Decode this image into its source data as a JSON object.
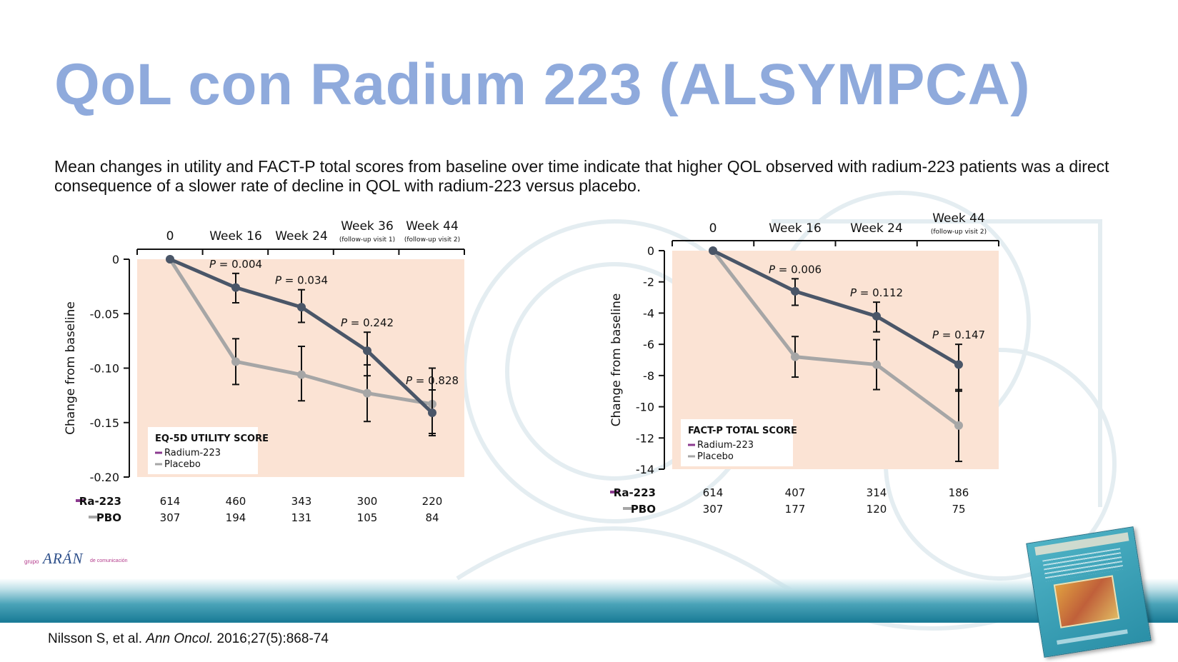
{
  "slide": {
    "title": "QoL con Radium 223 (ALSYMPCA)",
    "subtitle": "Mean changes in utility and FACT-P total scores from baseline over time indicate that higher QOL observed with radium-223 patients was a direct consequence of a slower rate of decline in QOL with radium-223 versus placebo.",
    "citation_authors": "Nilsson S, et al. ",
    "citation_journal": "Ann Oncol.",
    "citation_ref": " 2016;27(5):868-74",
    "logo_prefix": "grupo",
    "logo_name": "ARÁN",
    "logo_suffix": "de comunicación"
  },
  "colors": {
    "title": "#8faadc",
    "radium": "#4a5668",
    "placebo": "#a6a6a6",
    "plot_bg": "#fbe3d4",
    "legend_radium": "#8b3a8f",
    "footer_band": "#1c7d98"
  },
  "chart_data": [
    {
      "type": "line",
      "title": "EQ-5D UTILITY SCORE",
      "ylabel": "Change from baseline",
      "ylim": [
        -0.2,
        0
      ],
      "yticks": [
        "0",
        "-0.05",
        "-0.10",
        "-0.15",
        "-0.20"
      ],
      "ytick_values": [
        0,
        -0.05,
        -0.1,
        -0.15,
        -0.2
      ],
      "categories": [
        "0",
        "Week 16",
        "Week 24",
        "Week 36",
        "Week 44"
      ],
      "category_notes": [
        "",
        "",
        "",
        "(follow-up visit 1)",
        "(follow-up visit 2)"
      ],
      "series": [
        {
          "name": "Radium-223",
          "values": [
            0,
            -0.026,
            -0.044,
            -0.084,
            -0.141
          ],
          "err_low": [
            0,
            -0.04,
            -0.058,
            -0.107,
            -0.162
          ],
          "err_high": [
            0,
            -0.013,
            -0.028,
            -0.067,
            -0.12
          ]
        },
        {
          "name": "Placebo",
          "values": [
            0,
            -0.094,
            -0.106,
            -0.123,
            -0.133
          ],
          "err_low": [
            0,
            -0.115,
            -0.13,
            -0.149,
            -0.16
          ],
          "err_high": [
            0,
            -0.073,
            -0.08,
            -0.097,
            -0.1
          ]
        }
      ],
      "pvalues": [
        "",
        "0.004",
        "0.034",
        "0.242",
        "0.828"
      ],
      "n_at_risk": {
        "ra_label": "Ra-223",
        "pbo_label": "PBO",
        "ra": [
          "614",
          "460",
          "343",
          "300",
          "220"
        ],
        "pbo": [
          "307",
          "194",
          "131",
          "105",
          "84"
        ]
      },
      "legend_position": "bottom-left"
    },
    {
      "type": "line",
      "title": "FACT-P TOTAL SCORE",
      "ylabel": "Change from baseline",
      "ylim": [
        -14,
        0
      ],
      "yticks": [
        "0",
        "-2",
        "-4",
        "-6",
        "-8",
        "-10",
        "-12",
        "-14"
      ],
      "ytick_values": [
        0,
        -2,
        -4,
        -6,
        -8,
        -10,
        -12,
        -14
      ],
      "categories": [
        "0",
        "Week 16",
        "Week 24",
        "Week 44"
      ],
      "category_notes": [
        "",
        "",
        "",
        "(follow-up visit 2)"
      ],
      "series": [
        {
          "name": "Radium-223",
          "values": [
            0,
            -2.6,
            -4.2,
            -7.3
          ],
          "err_low": [
            0,
            -3.5,
            -5.2,
            -9.0
          ],
          "err_high": [
            0,
            -1.8,
            -3.3,
            -6.0
          ]
        },
        {
          "name": "Placebo",
          "values": [
            0,
            -6.8,
            -7.3,
            -11.2
          ],
          "err_low": [
            0,
            -8.1,
            -8.9,
            -13.5
          ],
          "err_high": [
            0,
            -5.5,
            -5.7,
            -8.9
          ]
        }
      ],
      "pvalues": [
        "",
        "0.006",
        "0.112",
        "0.147"
      ],
      "n_at_risk": {
        "ra_label": "Ra-223",
        "pbo_label": "PBO",
        "ra": [
          "614",
          "407",
          "314",
          "186"
        ],
        "pbo": [
          "307",
          "177",
          "120",
          "75"
        ]
      },
      "legend_position": "bottom-left"
    }
  ]
}
